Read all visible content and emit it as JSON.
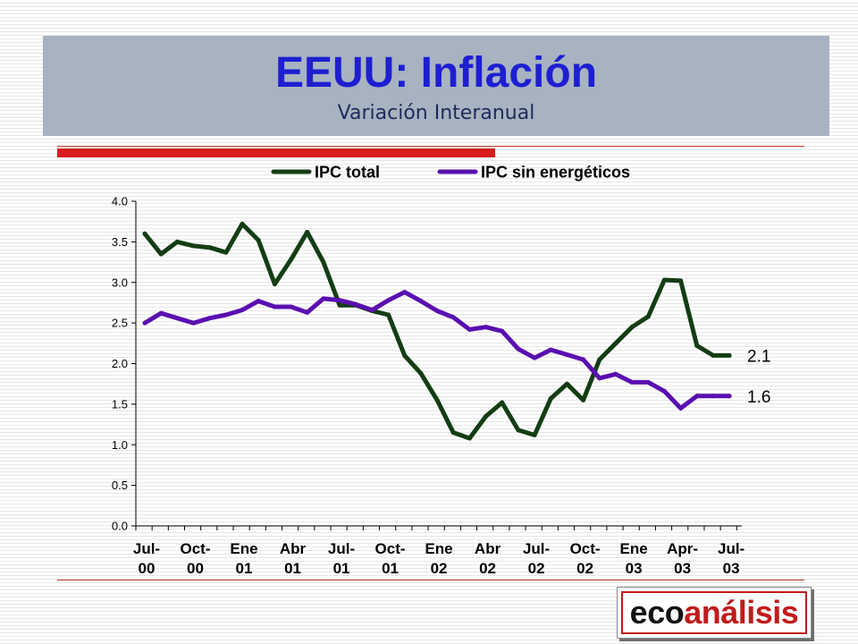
{
  "slide": {
    "title": "EEUU: Inflación",
    "subtitle": "Variación Interanual",
    "logo": {
      "part1": "eco",
      "part2": "análisis"
    }
  },
  "chart_data": {
    "type": "line",
    "legend_position": "top",
    "ylim": [
      0,
      4.0
    ],
    "yticks": [
      "0.0",
      "0.5",
      "1.0",
      "1.5",
      "2.0",
      "2.5",
      "3.0",
      "3.5",
      "4.0"
    ],
    "xtick_labels": [
      [
        "Jul-",
        "00"
      ],
      [
        "Oct-",
        "00"
      ],
      [
        "Ene",
        "01"
      ],
      [
        "Abr",
        "01"
      ],
      [
        "Jul-",
        "01"
      ],
      [
        "Oct-",
        "01"
      ],
      [
        "Ene",
        "02"
      ],
      [
        "Abr",
        "02"
      ],
      [
        "Jul-",
        "02"
      ],
      [
        "Oct-",
        "02"
      ],
      [
        "Ene",
        "03"
      ],
      [
        "Apr-",
        "03"
      ],
      [
        "Jul-",
        "03"
      ]
    ],
    "x": [
      "2000-07",
      "2000-08",
      "2000-09",
      "2000-10",
      "2000-11",
      "2000-12",
      "2001-01",
      "2001-02",
      "2001-03",
      "2001-04",
      "2001-05",
      "2001-06",
      "2001-07",
      "2001-08",
      "2001-09",
      "2001-10",
      "2001-11",
      "2001-12",
      "2002-01",
      "2002-02",
      "2002-03",
      "2002-04",
      "2002-05",
      "2002-06",
      "2002-07",
      "2002-08",
      "2002-09",
      "2002-10",
      "2002-11",
      "2002-12",
      "2003-01",
      "2003-02",
      "2003-03",
      "2003-04",
      "2003-05",
      "2003-06",
      "2003-07"
    ],
    "series": [
      {
        "name": "IPC total",
        "color": "#143d14",
        "end_label": "2.1",
        "values": [
          3.6,
          3.35,
          3.5,
          3.45,
          3.43,
          3.37,
          3.72,
          3.52,
          2.98,
          3.28,
          3.62,
          3.25,
          2.72,
          2.72,
          2.65,
          2.6,
          2.1,
          1.88,
          1.55,
          1.15,
          1.08,
          1.35,
          1.52,
          1.18,
          1.12,
          1.57,
          1.75,
          1.55,
          2.05,
          2.25,
          2.45,
          2.58,
          3.03,
          3.02,
          2.22,
          2.1,
          2.1
        ]
      },
      {
        "name": "IPC sin energéticos",
        "color": "#5a0fb0",
        "end_label": "1.6",
        "values": [
          2.5,
          2.62,
          2.56,
          2.5,
          2.56,
          2.6,
          2.66,
          2.77,
          2.7,
          2.7,
          2.63,
          2.8,
          2.78,
          2.73,
          2.66,
          2.78,
          2.88,
          2.77,
          2.65,
          2.57,
          2.42,
          2.45,
          2.4,
          2.18,
          2.07,
          2.17,
          2.11,
          2.05,
          1.82,
          1.87,
          1.77,
          1.77,
          1.66,
          1.45,
          1.6,
          1.6,
          1.6
        ]
      }
    ]
  }
}
